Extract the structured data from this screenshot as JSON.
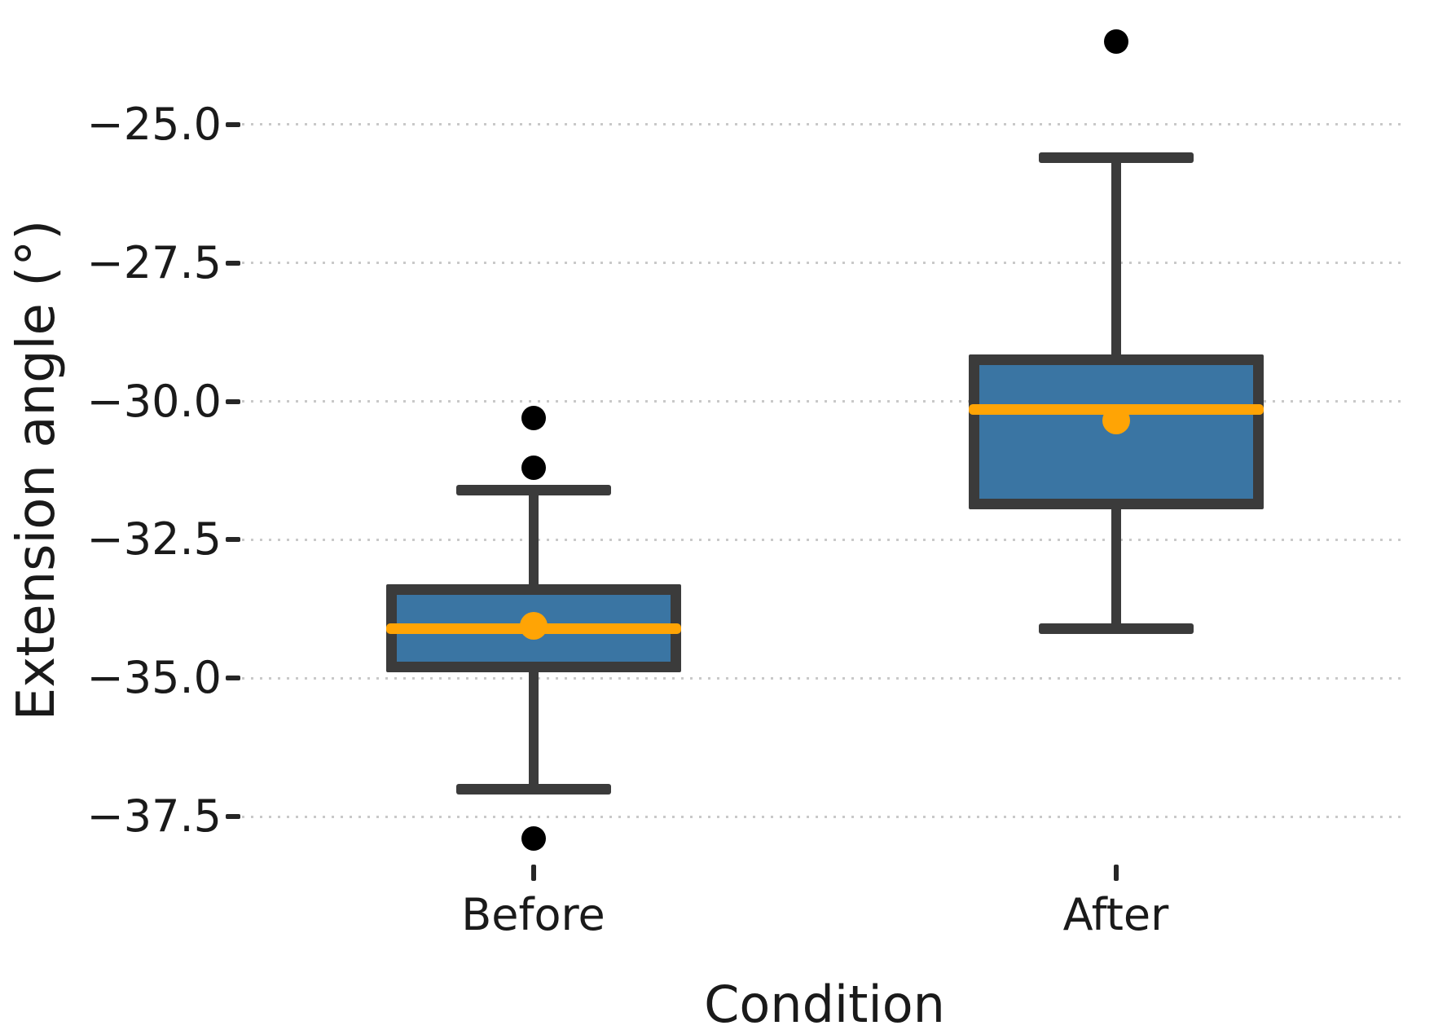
{
  "figure": {
    "background": "#ffffff"
  },
  "chart_data": {
    "type": "boxplot",
    "title": "",
    "xlabel": "Condition",
    "ylabel": "Extension angle (°)",
    "categories": [
      "Before",
      "After"
    ],
    "y_ticks": [
      -37.5,
      -35.0,
      -32.5,
      -30.0,
      -27.5,
      -25.0
    ],
    "ylim": [
      -38.35,
      -22.9
    ],
    "grid": "horizontal-dotted",
    "legend": "none",
    "boxes": [
      {
        "label": "Before",
        "whisker_low": -37.0,
        "q1": -34.8,
        "median": -34.1,
        "mean": -34.05,
        "q3": -33.4,
        "whisker_high": -31.6,
        "outliers": [
          -30.3,
          -31.2,
          -37.9
        ]
      },
      {
        "label": "After",
        "whisker_low": -34.1,
        "q1": -31.85,
        "median": -30.15,
        "mean": -30.35,
        "q3": -29.25,
        "whisker_high": -25.6,
        "outliers": [
          -23.5
        ]
      }
    ],
    "colors": {
      "box_fill": "#3a75a3",
      "box_edge": "#3b3b3b",
      "median": "#ffa405",
      "mean_dot": "#ffa405",
      "outlier": "#000000",
      "grid": "#c9c9c9",
      "text": "#1a1a1a"
    }
  }
}
